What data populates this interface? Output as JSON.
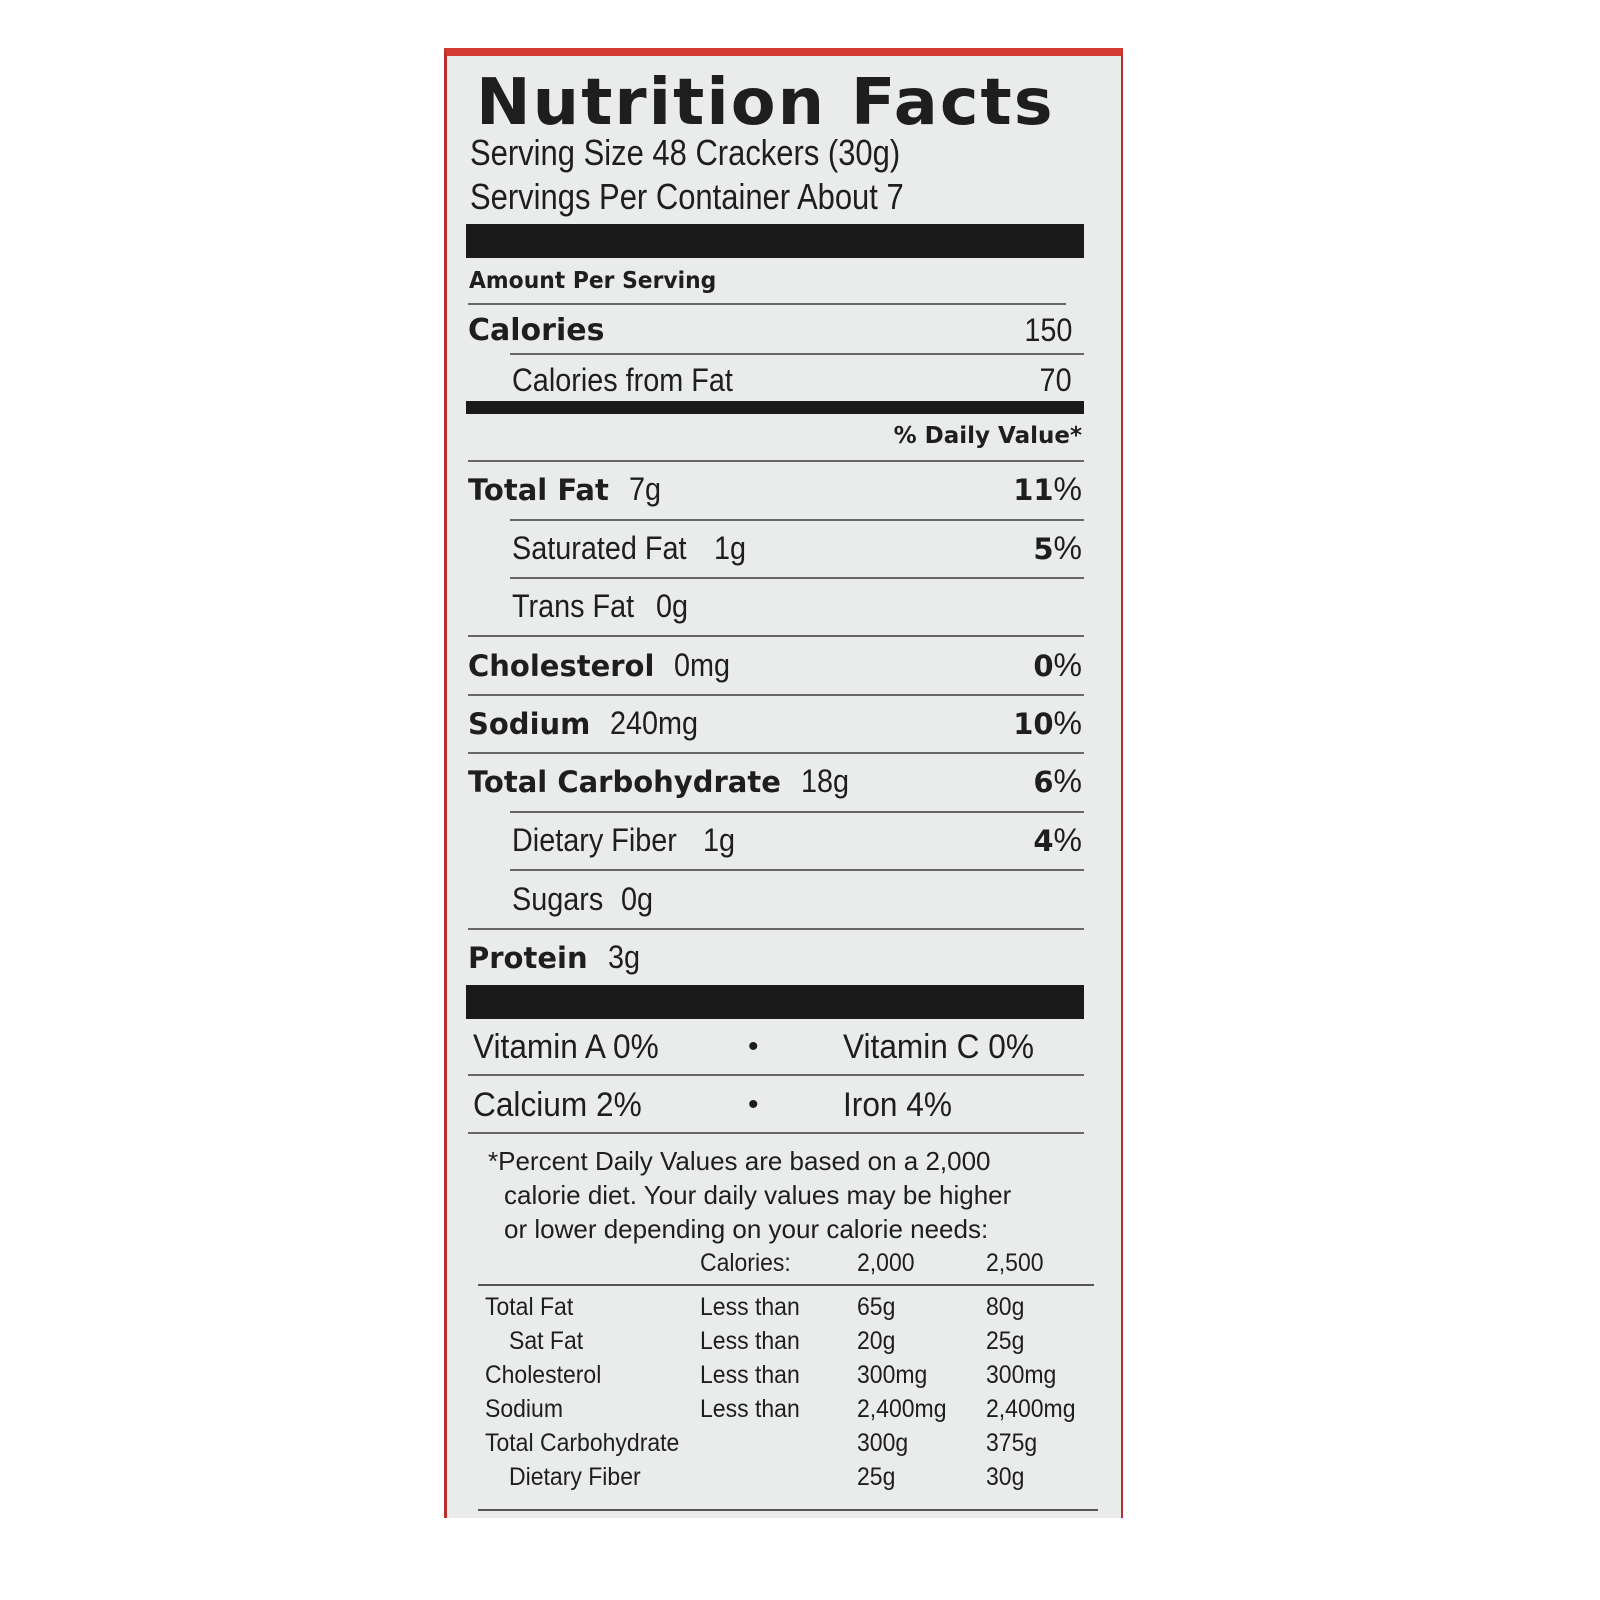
{
  "title": "Nutrition Facts",
  "serving_size": "Serving Size 48 Crackers (30g)",
  "servings_per_container": "Servings Per Container About 7",
  "amount_per_serving": "Amount Per Serving",
  "calories": {
    "label": "Calories",
    "value": "150"
  },
  "calories_from_fat": {
    "label": "Calories from Fat",
    "value": "70"
  },
  "daily_value_header": "% Daily Value*",
  "nutrients": [
    {
      "label": "Total Fat",
      "amount": "7g",
      "dv": "11",
      "bold": true
    },
    {
      "label": "Saturated Fat",
      "amount": "1g",
      "dv": "5",
      "bold": false
    },
    {
      "label": "Trans Fat",
      "amount": "0g",
      "dv": "",
      "bold": false
    },
    {
      "label": "Cholesterol",
      "amount": "0mg",
      "dv": "0",
      "bold": true
    },
    {
      "label": "Sodium",
      "amount": "240mg",
      "dv": "10",
      "bold": true
    },
    {
      "label": "Total Carbohydrate",
      "amount": "18g",
      "dv": "6",
      "bold": true
    },
    {
      "label": "Dietary Fiber",
      "amount": "1g",
      "dv": "4",
      "bold": false
    },
    {
      "label": "Sugars",
      "amount": "0g",
      "dv": "",
      "bold": false
    },
    {
      "label": "Protein",
      "amount": "3g",
      "dv": "",
      "bold": true
    }
  ],
  "vitamins": [
    {
      "left": "Vitamin A 0%",
      "right": "Vitamin C 0%"
    },
    {
      "left": "Calcium 2%",
      "right": "Iron 4%"
    }
  ],
  "bullet": "•",
  "percent": "%",
  "footnote": [
    "*Percent Daily Values are based on a 2,000",
    "calorie diet. Your daily values may be higher",
    "or lower depending on your calorie needs:"
  ],
  "reference_table": {
    "header": [
      "Calories:",
      "2,000",
      "2,500"
    ],
    "rows": [
      [
        "Total Fat",
        "Less than",
        "65g",
        "80g"
      ],
      [
        "Sat Fat",
        "Less than",
        "20g",
        "25g"
      ],
      [
        "Cholesterol",
        "Less than",
        "300mg",
        "300mg"
      ],
      [
        "Sodium",
        "Less than",
        "2,400mg",
        "2,400mg"
      ],
      [
        "Total Carbohydrate",
        "",
        "300g",
        "375g"
      ],
      [
        "Dietary Fiber",
        "",
        "25g",
        "30g"
      ]
    ]
  },
  "colors": {
    "background": "#e9ecea",
    "border": "#d23a33",
    "text": "#1e1e1e"
  }
}
